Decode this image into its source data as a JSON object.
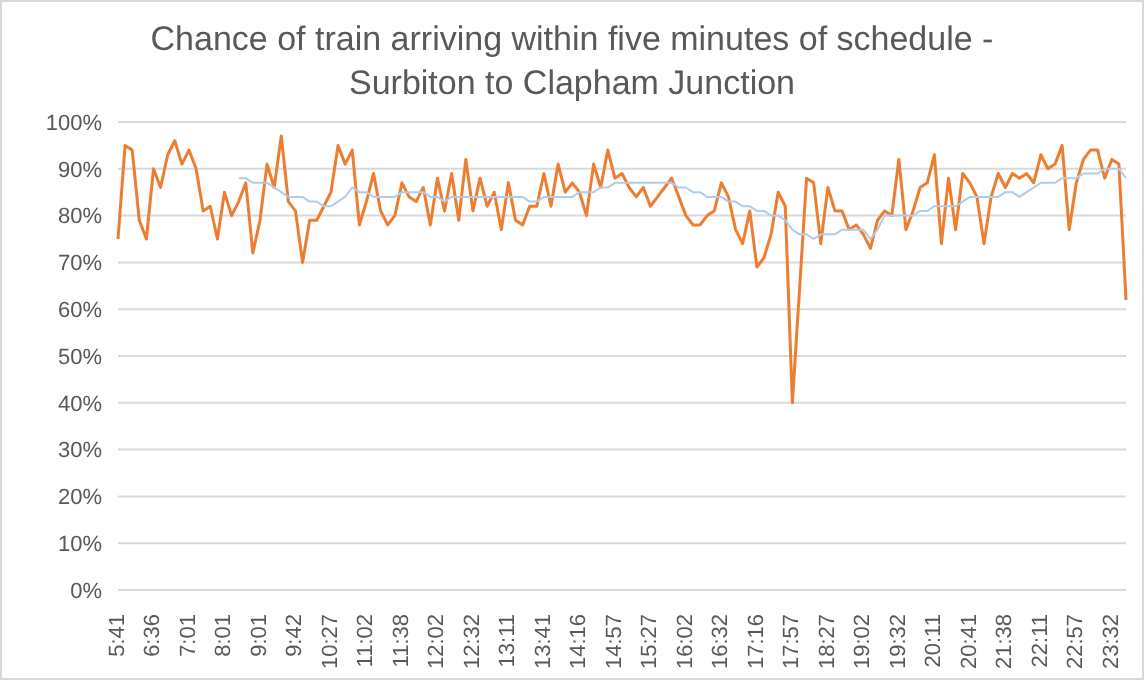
{
  "chart_data": {
    "type": "line",
    "title": "Chance of train arriving within five minutes of schedule - Surbiton to Clapham Junction",
    "categories": [
      "5:41",
      null,
      null,
      null,
      null,
      "6:36",
      null,
      null,
      null,
      null,
      "7:01",
      null,
      null,
      null,
      null,
      "8:01",
      null,
      null,
      null,
      null,
      "9:01",
      null,
      null,
      null,
      null,
      "9:42",
      null,
      null,
      null,
      null,
      "10:27",
      null,
      null,
      null,
      null,
      "11:02",
      null,
      null,
      null,
      null,
      "11:38",
      null,
      null,
      null,
      null,
      "12:02",
      null,
      null,
      null,
      null,
      "12:32",
      null,
      null,
      null,
      null,
      "13:11",
      null,
      null,
      null,
      null,
      "13:41",
      null,
      null,
      null,
      null,
      "14:16",
      null,
      null,
      null,
      null,
      "14:57",
      null,
      null,
      null,
      null,
      "15:27",
      null,
      null,
      null,
      null,
      "16:02",
      null,
      null,
      null,
      null,
      "16:32",
      null,
      null,
      null,
      null,
      "17:16",
      null,
      null,
      null,
      null,
      "17:57",
      null,
      null,
      null,
      null,
      "18:27",
      null,
      null,
      null,
      null,
      "19:02",
      null,
      null,
      null,
      null,
      "19:32",
      null,
      null,
      null,
      null,
      "20:11",
      null,
      null,
      null,
      null,
      "20:41",
      null,
      null,
      null,
      null,
      "21:38",
      null,
      null,
      null,
      null,
      "22:11",
      null,
      null,
      null,
      null,
      "22:57",
      null,
      null,
      null,
      null,
      "23:32",
      null,
      null
    ],
    "series": [
      {
        "color": "#ed7d31",
        "values": [
          75,
          95,
          94,
          79,
          75,
          90,
          86,
          93,
          96,
          91,
          94,
          90,
          81,
          82,
          75,
          85,
          80,
          83,
          87,
          72,
          79,
          91,
          86,
          97,
          83,
          81,
          70,
          79,
          79,
          82,
          85,
          95,
          91,
          94,
          78,
          83,
          89,
          81,
          78,
          80,
          87,
          84,
          83,
          86,
          78,
          88,
          81,
          89,
          79,
          92,
          81,
          88,
          82,
          85,
          77,
          87,
          79,
          78,
          82,
          82,
          89,
          82,
          91,
          85,
          87,
          85,
          80,
          91,
          86,
          94,
          88,
          89,
          86,
          84,
          86,
          82,
          84,
          86,
          88,
          84,
          80,
          78,
          78,
          80,
          81,
          87,
          84,
          77,
          74,
          81,
          69,
          71,
          76,
          85,
          82,
          40,
          64,
          88,
          87,
          74,
          86,
          81,
          81,
          77,
          78,
          76,
          73,
          79,
          81,
          80,
          92,
          77,
          81,
          86,
          87,
          93,
          74,
          88,
          77,
          89,
          87,
          84,
          74,
          84,
          89,
          86,
          89,
          88,
          89,
          87,
          93,
          90,
          91,
          95,
          77,
          87,
          92,
          94,
          94,
          88,
          92,
          91,
          62
        ]
      },
      {
        "color": "#aecdec",
        "values": [
          null,
          null,
          null,
          null,
          null,
          null,
          null,
          null,
          null,
          null,
          null,
          null,
          null,
          null,
          null,
          null,
          null,
          88,
          88,
          87,
          87,
          87,
          86,
          85,
          84,
          84,
          84,
          83,
          83,
          82,
          82,
          83,
          84,
          86,
          85,
          85,
          84,
          84,
          84,
          84,
          85,
          85,
          85,
          85,
          84,
          84,
          83,
          84,
          84,
          84,
          84,
          84,
          84,
          84,
          84,
          84,
          84,
          84,
          83,
          83,
          84,
          84,
          84,
          84,
          84,
          85,
          85,
          85,
          86,
          86,
          87,
          87,
          87,
          87,
          87,
          87,
          87,
          87,
          87,
          86,
          86,
          85,
          85,
          84,
          84,
          84,
          83,
          83,
          82,
          82,
          81,
          81,
          80,
          80,
          79,
          77,
          76,
          76,
          75,
          76,
          76,
          76,
          77,
          77,
          77,
          77,
          75,
          77,
          80,
          80,
          80,
          80,
          80,
          81,
          81,
          82,
          82,
          82,
          82,
          83,
          84,
          84,
          84,
          84,
          84,
          85,
          85,
          84,
          85,
          86,
          87,
          87,
          87,
          88,
          88,
          88,
          89,
          89,
          89,
          90,
          90,
          90,
          88
        ]
      }
    ],
    "ylim": [
      0,
      100
    ],
    "yticks": [
      {
        "value": 0,
        "label": "0%"
      },
      {
        "value": 10,
        "label": "10%"
      },
      {
        "value": 20,
        "label": "20%"
      },
      {
        "value": 30,
        "label": "30%"
      },
      {
        "value": 40,
        "label": "40%"
      },
      {
        "value": 50,
        "label": "50%"
      },
      {
        "value": 60,
        "label": "60%"
      },
      {
        "value": 70,
        "label": "70%"
      },
      {
        "value": 80,
        "label": "80%"
      },
      {
        "value": 90,
        "label": "90%"
      },
      {
        "value": 100,
        "label": "100%"
      }
    ],
    "grid": "y",
    "marker": "none",
    "line_style": "solid"
  }
}
